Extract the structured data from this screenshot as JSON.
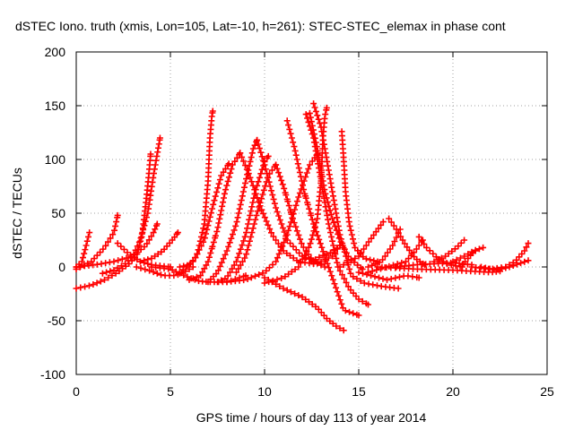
{
  "chart_data": {
    "type": "scatter",
    "title": "dSTEC Iono. truth (xmis, Lon=105, Lat=-10, h=261): STEC-STEC_elemax in phase cont",
    "xlabel": "GPS time / hours of day 113 of year 2014",
    "ylabel": "dSTEC  / TECUs",
    "xlim": [
      0,
      25
    ],
    "ylim": [
      -100,
      200
    ],
    "x_ticks": [
      0,
      5,
      10,
      15,
      20,
      25
    ],
    "y_ticks": [
      -100,
      -50,
      0,
      50,
      100,
      150,
      200
    ],
    "x_tick_labels": [
      "0",
      "5",
      "10",
      "15",
      "20",
      "25"
    ],
    "y_tick_labels": [
      "-100",
      "-50",
      "0",
      "50",
      "100",
      "150",
      "200"
    ],
    "grid": true,
    "grid_style": "dotted",
    "marker": "plus",
    "color": "#ff0000",
    "series": [
      {
        "points": [
          [
            0,
            -20
          ],
          [
            0.8,
            -17
          ],
          [
            1.5,
            -12
          ],
          [
            2.2,
            -5
          ],
          [
            2.8,
            3
          ],
          [
            3.2,
            10
          ],
          [
            3.5,
            30
          ],
          [
            3.7,
            60
          ],
          [
            3.85,
            85
          ],
          [
            3.95,
            105
          ]
        ]
      },
      {
        "points": [
          [
            0,
            0
          ],
          [
            0.3,
            5
          ],
          [
            0.5,
            18
          ],
          [
            0.7,
            32
          ]
        ]
      },
      {
        "points": [
          [
            0,
            -2
          ],
          [
            0.8,
            5
          ],
          [
            1.5,
            18
          ],
          [
            2,
            32
          ],
          [
            2.2,
            48
          ]
        ]
      },
      {
        "points": [
          [
            1.4,
            -6
          ],
          [
            2,
            -3
          ],
          [
            2.6,
            3
          ],
          [
            3,
            10
          ],
          [
            3.4,
            25
          ],
          [
            3.8,
            50
          ],
          [
            4.1,
            85
          ],
          [
            4.3,
            105
          ],
          [
            4.45,
            120
          ]
        ]
      },
      {
        "points": [
          [
            0,
            0
          ],
          [
            1,
            2
          ],
          [
            2,
            5
          ],
          [
            3,
            10
          ],
          [
            3.7,
            20
          ],
          [
            4.1,
            32
          ],
          [
            4.3,
            40
          ]
        ]
      },
      {
        "points": [
          [
            2.2,
            22
          ],
          [
            2.8,
            12
          ],
          [
            3.4,
            5
          ],
          [
            4,
            2
          ],
          [
            5,
            0
          ]
        ]
      },
      {
        "points": [
          [
            3.4,
            5
          ],
          [
            4,
            8
          ],
          [
            4.6,
            15
          ],
          [
            5.1,
            25
          ],
          [
            5.4,
            32
          ]
        ]
      },
      {
        "points": [
          [
            3.2,
            0
          ],
          [
            4,
            -4
          ],
          [
            4.6,
            -8
          ],
          [
            5.3,
            -8
          ],
          [
            5.8,
            -4
          ],
          [
            6.2,
            0
          ]
        ]
      },
      {
        "points": [
          [
            4,
            0
          ],
          [
            5,
            -2
          ],
          [
            6,
            -10
          ],
          [
            6.5,
            -13
          ],
          [
            7,
            -14
          ],
          [
            8,
            -14
          ],
          [
            9,
            -8
          ]
        ]
      },
      {
        "points": [
          [
            5.5,
            0
          ],
          [
            6,
            2
          ],
          [
            6.4,
            10
          ],
          [
            6.8,
            40
          ],
          [
            7,
            80
          ],
          [
            7.1,
            120
          ],
          [
            7.2,
            140
          ],
          [
            7.25,
            145
          ]
        ]
      },
      {
        "points": [
          [
            5.5,
            -5
          ],
          [
            6.2,
            5
          ],
          [
            6.8,
            25
          ],
          [
            7.3,
            60
          ],
          [
            7.7,
            85
          ],
          [
            8.1,
            96
          ]
        ]
      },
      {
        "points": [
          [
            6,
            -12
          ],
          [
            6.6,
            -8
          ],
          [
            7,
            5
          ],
          [
            7.5,
            35
          ],
          [
            7.9,
            70
          ],
          [
            8.3,
            95
          ],
          [
            8.6,
            103
          ],
          [
            8.7,
            106
          ]
        ]
      },
      {
        "points": [
          [
            8.7,
            106
          ],
          [
            9.2,
            85
          ],
          [
            9.8,
            55
          ],
          [
            10.4,
            30
          ],
          [
            11,
            15
          ],
          [
            11.8,
            5
          ],
          [
            12.6,
            3
          ]
        ]
      },
      {
        "points": [
          [
            7,
            -14
          ],
          [
            7.5,
            -5
          ],
          [
            8,
            15
          ],
          [
            8.5,
            40
          ],
          [
            9,
            80
          ],
          [
            9.4,
            110
          ],
          [
            9.6,
            118
          ]
        ]
      },
      {
        "points": [
          [
            9.6,
            118
          ],
          [
            10,
            95
          ],
          [
            10.6,
            55
          ],
          [
            11.2,
            25
          ],
          [
            12,
            10
          ],
          [
            13,
            3
          ]
        ]
      },
      {
        "points": [
          [
            7.5,
            -14
          ],
          [
            8,
            -10
          ],
          [
            8.5,
            5
          ],
          [
            9,
            30
          ],
          [
            9.5,
            70
          ],
          [
            10,
            98
          ],
          [
            10.2,
            103
          ]
        ]
      },
      {
        "points": [
          [
            8.5,
            -5
          ],
          [
            9,
            10
          ],
          [
            9.6,
            50
          ],
          [
            10.2,
            85
          ],
          [
            10.6,
            95
          ]
        ]
      },
      {
        "points": [
          [
            10.6,
            95
          ],
          [
            11,
            75
          ],
          [
            11.5,
            45
          ],
          [
            12,
            20
          ],
          [
            12.6,
            5
          ],
          [
            13.2,
            0
          ]
        ]
      },
      {
        "points": [
          [
            8,
            -14
          ],
          [
            9,
            -12
          ],
          [
            10,
            -5
          ],
          [
            10.6,
            5
          ],
          [
            11.2,
            30
          ],
          [
            11.8,
            65
          ],
          [
            12.4,
            95
          ],
          [
            12.8,
            105
          ]
        ]
      },
      {
        "points": [
          [
            10,
            -15
          ],
          [
            11,
            -10
          ],
          [
            11.8,
            0
          ],
          [
            12.4,
            20
          ],
          [
            12.8,
            45
          ],
          [
            13,
            80
          ],
          [
            13.1,
            120
          ],
          [
            13.2,
            140
          ],
          [
            13.3,
            148
          ]
        ]
      },
      {
        "points": [
          [
            11.2,
            136
          ],
          [
            11.6,
            110
          ],
          [
            12.1,
            70
          ],
          [
            12.6,
            40
          ],
          [
            13,
            20
          ],
          [
            13.6,
            -10
          ],
          [
            14.2,
            -40
          ],
          [
            15,
            -45
          ]
        ]
      },
      {
        "points": [
          [
            12.2,
            142
          ],
          [
            12.6,
            120
          ],
          [
            13,
            80
          ],
          [
            13.4,
            40
          ],
          [
            13.9,
            0
          ],
          [
            14.5,
            -20
          ],
          [
            15,
            -30
          ],
          [
            15.5,
            -35
          ]
        ]
      },
      {
        "points": [
          [
            12.6,
            152
          ],
          [
            13,
            130
          ],
          [
            13.5,
            80
          ],
          [
            14,
            30
          ],
          [
            14.6,
            -8
          ],
          [
            15.3,
            -15
          ],
          [
            16.2,
            -18
          ],
          [
            17.1,
            -20
          ]
        ]
      },
      {
        "points": [
          [
            12.4,
            143
          ],
          [
            12.8,
            110
          ],
          [
            13.2,
            70
          ],
          [
            13.6,
            45
          ],
          [
            14,
            25
          ],
          [
            14.5,
            8
          ],
          [
            15.2,
            -2
          ]
        ]
      },
      {
        "points": [
          [
            10,
            -10
          ],
          [
            11,
            -20
          ],
          [
            12,
            -28
          ],
          [
            12.8,
            -38
          ],
          [
            13.3,
            -48
          ],
          [
            13.8,
            -55
          ],
          [
            14.2,
            -59
          ]
        ]
      },
      {
        "points": [
          [
            14.1,
            126
          ],
          [
            14.2,
            100
          ],
          [
            14.3,
            70
          ],
          [
            14.5,
            40
          ],
          [
            14.8,
            18
          ],
          [
            15.3,
            8
          ],
          [
            16,
            5
          ]
        ]
      },
      {
        "points": [
          [
            14,
            20
          ],
          [
            13.6,
            10
          ],
          [
            13,
            5
          ],
          [
            12.6,
            3
          ]
        ]
      },
      {
        "points": [
          [
            12.5,
            5
          ],
          [
            13,
            10
          ],
          [
            13.6,
            14
          ],
          [
            14,
            20
          ]
        ]
      },
      {
        "points": [
          [
            14,
            0
          ],
          [
            15,
            10
          ],
          [
            15.6,
            25
          ],
          [
            16.3,
            42
          ]
        ]
      },
      {
        "points": [
          [
            15.5,
            0
          ],
          [
            16.2,
            5
          ],
          [
            16.8,
            20
          ],
          [
            17.2,
            35
          ]
        ]
      },
      {
        "points": [
          [
            16.6,
            45
          ],
          [
            17,
            35
          ],
          [
            17.5,
            20
          ],
          [
            18,
            8
          ],
          [
            18.5,
            2
          ]
        ]
      },
      {
        "points": [
          [
            15.5,
            -5
          ],
          [
            16.5,
            0
          ],
          [
            17.5,
            5
          ],
          [
            18,
            15
          ],
          [
            18.4,
            25
          ]
        ]
      },
      {
        "points": [
          [
            18.2,
            28
          ],
          [
            18.6,
            18
          ],
          [
            19.2,
            8
          ],
          [
            19.8,
            2
          ],
          [
            20.5,
            0
          ]
        ]
      },
      {
        "points": [
          [
            19,
            5
          ],
          [
            19.6,
            10
          ],
          [
            20.2,
            18
          ],
          [
            20.6,
            25
          ]
        ]
      },
      {
        "points": [
          [
            15,
            -5
          ],
          [
            16.5,
            -12
          ],
          [
            17.5,
            -8
          ],
          [
            18.2,
            -10
          ]
        ]
      },
      {
        "points": [
          [
            16,
            0
          ],
          [
            18,
            -2
          ],
          [
            20,
            -3
          ],
          [
            22,
            -5
          ],
          [
            22.5,
            -4
          ]
        ]
      },
      {
        "points": [
          [
            21.2,
            15
          ],
          [
            21,
            12
          ],
          [
            20.8,
            8
          ],
          [
            20.5,
            2
          ]
        ]
      },
      {
        "points": [
          [
            20,
            5
          ],
          [
            20.6,
            10
          ],
          [
            21.1,
            15
          ],
          [
            21.6,
            18
          ]
        ]
      },
      {
        "points": [
          [
            21,
            0
          ],
          [
            22,
            -2
          ],
          [
            22.8,
            0
          ],
          [
            23.3,
            5
          ],
          [
            23.8,
            15
          ],
          [
            24,
            22
          ]
        ]
      },
      {
        "points": [
          [
            21.5,
            0
          ],
          [
            22.3,
            -3
          ],
          [
            23,
            0
          ],
          [
            23.5,
            3
          ],
          [
            24,
            6
          ]
        ]
      },
      {
        "points": [
          [
            17,
            0
          ],
          [
            18,
            2
          ],
          [
            19,
            3
          ],
          [
            20,
            4
          ],
          [
            21,
            2
          ]
        ]
      }
    ]
  }
}
